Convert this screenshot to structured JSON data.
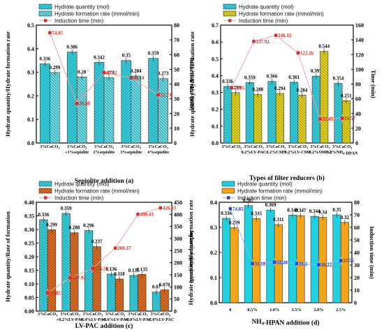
{
  "chart_data": [
    {
      "type": "bar",
      "caption": "Sepiolite addition (a)",
      "ylabel_left": "Hydrate quantity/Hydrate formation rate",
      "ylabel_right": "Induction time (min)",
      "ylim_left": [
        0.0,
        0.5
      ],
      "ylim_right": [
        0,
        80
      ],
      "left_ticks": [
        "0.0",
        "0.1",
        "0.2",
        "0.3",
        "0.4",
        "0.5"
      ],
      "right_ticks": [
        "0",
        "10",
        "20",
        "30",
        "40",
        "50",
        "60",
        "70",
        "80"
      ],
      "categories": [
        "3%CaCO3",
        "3%CaCO3 +1%sepiolite",
        "3%CaCO3 2%sepiolite",
        "3%CaCO3 3%sepiolite",
        "3%CaCO3 4%sepiolite"
      ],
      "series": [
        {
          "name": "Hydrate quantity (mol)",
          "values": [
            0.336,
            0.386,
            0.342,
            0.35,
            0.359
          ],
          "labels": [
            "0.336",
            "0.386",
            "0.342",
            "0.35",
            "0.359"
          ]
        },
        {
          "name": "Hydrate formation rate (mmol/min)",
          "values": [
            0.299,
            0.28,
            0.277,
            0.284,
            0.273
          ],
          "labels": [
            "0.299",
            "0.28",
            "0.277",
            "0.284",
            "0.273"
          ]
        },
        {
          "name": "Induction time (min)",
          "axis": "right",
          "values": [
            74.85,
            26.88,
            47.82,
            44.18,
            32.73
          ],
          "labels": [
            "74.85",
            "26.88",
            "47.82",
            "44.18",
            "32.73"
          ]
        }
      ]
    },
    {
      "type": "bar",
      "caption": "Types of filter reducers (b)",
      "ylabel_left": "Hydrate quantity/Hydrate formation rate",
      "ylabel_right": "Time (min)",
      "ylim_left": [
        0.0,
        0.7
      ],
      "ylim_right": [
        0,
        160
      ],
      "left_ticks": [
        "0.0",
        "0.1",
        "0.2",
        "0.3",
        "0.4",
        "0.5",
        "0.6",
        "0.7"
      ],
      "right_ticks": [
        "0",
        "20",
        "40",
        "60",
        "80",
        "100",
        "120",
        "140",
        "160"
      ],
      "categories": [
        "3%CaCO3",
        "3%CaCO3 0.2%LV-PAC",
        "3%CaCO3 0.2%CMS",
        "3%CaCO3 0.2%LV-CMC",
        "3%CaCO3 0.2%SMP-2",
        "3%CaCO3 0.2%NH4-HPAN"
      ],
      "series": [
        {
          "name": "Hydrate quantity (mol)",
          "values": [
            0.336,
            0.359,
            0.366,
            0.361,
            0.397,
            0.354
          ],
          "labels": [
            "0.336",
            "0.359",
            "0.366",
            "0.361",
            "0.397",
            "0.354"
          ]
        },
        {
          "name": "Hydrate formation rate  (mmol/min)",
          "values": [
            0.299,
            0.288,
            0.294,
            0.284,
            0.544,
            0.251
          ],
          "labels": [
            "0.299",
            "0.288",
            "0.294",
            "0.284",
            "0.544",
            "0.251"
          ]
        },
        {
          "name": "Induction time (min)",
          "axis": "right",
          "values": [
            74.85,
            137.92,
            146.12,
            122.26,
            32.45,
            33.57
          ],
          "labels": [
            "74.85",
            "137.92",
            "146.12",
            "122.26",
            "32.45",
            "33.57"
          ]
        }
      ]
    },
    {
      "type": "bar",
      "caption": "LV-PAC addition (c)",
      "ylabel_left": "Hydrate quantity/Rate of formation",
      "ylabel_right": "Induction time (min)",
      "ylim_left": [
        0.0,
        0.4
      ],
      "ylim_right": [
        0,
        450
      ],
      "left_ticks": [
        "0.00",
        "0.05",
        "0.10",
        "0.15",
        "0.20",
        "0.25",
        "0.30",
        "0.35",
        "0.40"
      ],
      "right_ticks": [
        "0",
        "50",
        "100",
        "150",
        "200",
        "250",
        "300",
        "350",
        "400",
        "450"
      ],
      "categories": [
        "3%CaCO3",
        "3%CaCO3 +0.2%LV-PAC",
        "3%CaCO3 +0.4%LV-PAC",
        "3%CaCO3 +0.6%LV-PAC",
        "3%CaCO3 +0.8%LV-PAC",
        "3%CaCO3 +1.0%LV-PAC"
      ],
      "series": [
        {
          "name": "Hydrate quantity (mol)",
          "values": [
            0.336,
            0.359,
            0.296,
            0.136,
            0.131,
            0.07
          ],
          "labels": [
            "0.336",
            "0.359",
            "0.296",
            "0.136",
            "0.131",
            "0.07"
          ]
        },
        {
          "name": "Hydrate formation rate (mmol/min)",
          "values": [
            0.299,
            0.288,
            0.237,
            0.118,
            0.135,
            0.078
          ],
          "labels": [
            "0.299",
            "0.288",
            "0.237",
            "0.118",
            "0.135",
            "0.078"
          ]
        },
        {
          "name": "Induction time (min)",
          "axis": "right",
          "values": [
            74.85,
            137.92,
            176.52,
            260.37,
            400.43,
            426.83
          ],
          "labels": [
            "74.85",
            "137.92",
            "176.52",
            "260.37",
            "400.43",
            "426.83"
          ]
        }
      ]
    },
    {
      "type": "bar",
      "caption": "NH4-HPAN addition (d)",
      "ylabel_left": "Hydrate quantity/Hydrate formation rate",
      "ylabel_right": "Induction time (min)",
      "ylim_left": [
        0.0,
        0.4
      ],
      "ylim_right": [
        0,
        80
      ],
      "left_ticks": [
        "0.0",
        "0.1",
        "0.2",
        "0.3",
        "0.4"
      ],
      "right_ticks": [
        "0",
        "10",
        "20",
        "30",
        "40",
        "50",
        "60",
        "70",
        "80"
      ],
      "categories": [
        "0",
        "0.5%",
        "1.0%",
        "1.5%",
        "2.0%",
        "2.5%"
      ],
      "series": [
        {
          "name": "Hydrate quantity (mol)",
          "values": [
            0.336,
            0.387,
            0.369,
            0.349,
            0.344,
            0.35
          ],
          "labels": [
            "0.336",
            "0.387",
            "0.369",
            "0.349",
            "0.344",
            "0.35"
          ]
        },
        {
          "name": "Hydrate formation rate (mmol/min)",
          "values": [
            0.299,
            0.335,
            0.311,
            0.347,
            0.34,
            0.32
          ],
          "labels": [
            "0.299",
            "0.335",
            "0.311",
            "0.347",
            "0.34",
            "0.32"
          ]
        },
        {
          "name": "Induction time (min)",
          "axis": "right",
          "values": [
            74.85,
            31.18,
            32.28,
            31.2,
            30.22,
            33.56
          ],
          "labels": [
            "74.85",
            "31.18",
            "32.28",
            "31.2",
            "30.22",
            "33.56"
          ]
        }
      ]
    }
  ],
  "colors": {
    "cyan": "#3fd1df",
    "yellow": "#e6d817",
    "orange": "#e8701f",
    "red_marker": "#e0281e",
    "blue_marker": "#1f3fd6",
    "line_pink": "#f2a0a8",
    "line_blue": "#8ab6ff"
  }
}
